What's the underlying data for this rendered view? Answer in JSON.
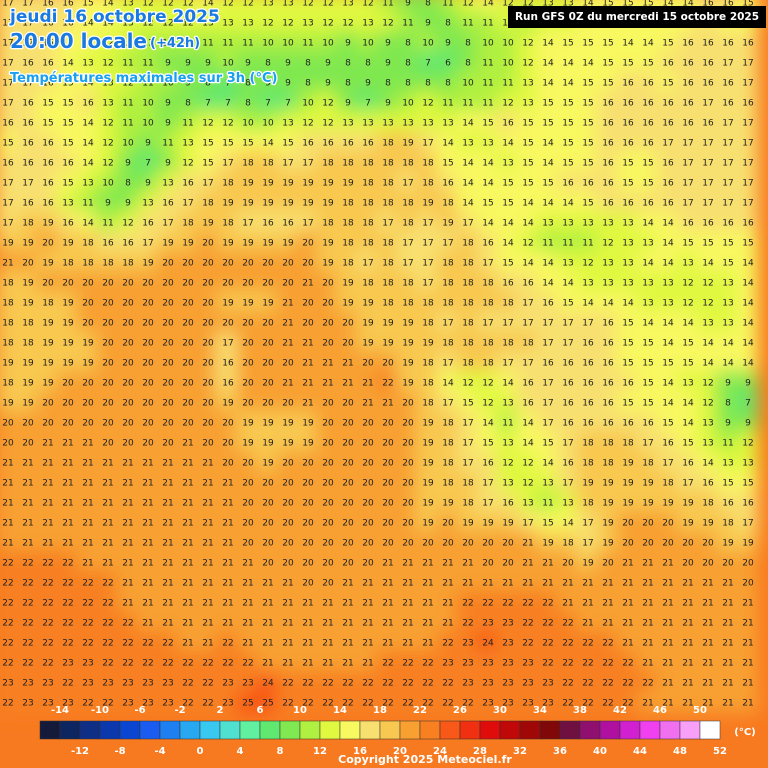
{
  "header": {
    "title": "jeudi 16 octobre 2025",
    "time": "20:00 locale",
    "lead": "(+42h)",
    "subtitle": "Températures maximales sur 3h (°C)",
    "run": "Run GFS 0Z du mercredi 15 octobre 2025"
  },
  "map": {
    "grid": [
      [
        17,
        17,
        16,
        16,
        15,
        14,
        13,
        12,
        12,
        12,
        14,
        12,
        12,
        13,
        13,
        12,
        12,
        13,
        12,
        11,
        9,
        8,
        11,
        12,
        14,
        12,
        12,
        13,
        13,
        14,
        15,
        15,
        15,
        14,
        14,
        16,
        16,
        15
      ],
      [
        17,
        17,
        16,
        16,
        14,
        14,
        13,
        12,
        12,
        12,
        13,
        13,
        13,
        12,
        12,
        13,
        12,
        12,
        13,
        12,
        11,
        9,
        8,
        11,
        11,
        12,
        11,
        12,
        13,
        14,
        15,
        15,
        15,
        14,
        14,
        16,
        15,
        15
      ],
      [
        17,
        17,
        16,
        15,
        14,
        12,
        12,
        11,
        10,
        10,
        11,
        11,
        11,
        10,
        10,
        11,
        10,
        9,
        10,
        9,
        8,
        10,
        9,
        8,
        10,
        10,
        12,
        14,
        15,
        15,
        15,
        14,
        14,
        15,
        16,
        16,
        16,
        16
      ],
      [
        17,
        16,
        16,
        14,
        13,
        12,
        11,
        11,
        9,
        9,
        9,
        10,
        9,
        8,
        9,
        8,
        9,
        8,
        8,
        9,
        8,
        7,
        6,
        8,
        11,
        10,
        12,
        14,
        14,
        14,
        15,
        15,
        15,
        16,
        16,
        16,
        17,
        17
      ],
      [
        17,
        17,
        16,
        15,
        14,
        13,
        12,
        11,
        10,
        9,
        8,
        7,
        8,
        9,
        9,
        8,
        9,
        8,
        9,
        8,
        8,
        8,
        8,
        10,
        11,
        11,
        13,
        14,
        14,
        15,
        15,
        16,
        16,
        15,
        16,
        16,
        16,
        17
      ],
      [
        17,
        16,
        15,
        15,
        16,
        13,
        11,
        10,
        9,
        8,
        7,
        7,
        8,
        7,
        7,
        10,
        12,
        9,
        7,
        9,
        10,
        12,
        11,
        11,
        11,
        12,
        13,
        15,
        15,
        15,
        16,
        16,
        16,
        16,
        16,
        17,
        16,
        16
      ],
      [
        16,
        16,
        15,
        15,
        14,
        12,
        11,
        10,
        9,
        11,
        12,
        12,
        10,
        10,
        13,
        12,
        12,
        13,
        13,
        13,
        13,
        13,
        13,
        14,
        15,
        16,
        15,
        15,
        15,
        15,
        16,
        16,
        16,
        16,
        16,
        16,
        17,
        17
      ],
      [
        15,
        16,
        16,
        15,
        14,
        12,
        10,
        9,
        11,
        13,
        15,
        15,
        15,
        14,
        15,
        16,
        16,
        16,
        16,
        18,
        19,
        17,
        14,
        13,
        13,
        14,
        15,
        14,
        15,
        15,
        16,
        16,
        16,
        17,
        17,
        17,
        17,
        17
      ],
      [
        16,
        16,
        16,
        16,
        14,
        12,
        9,
        7,
        9,
        12,
        15,
        17,
        18,
        18,
        17,
        17,
        18,
        18,
        18,
        18,
        18,
        18,
        15,
        14,
        14,
        13,
        15,
        14,
        15,
        15,
        16,
        15,
        15,
        16,
        17,
        17,
        17,
        17
      ],
      [
        17,
        17,
        16,
        15,
        13,
        10,
        8,
        9,
        13,
        16,
        17,
        18,
        19,
        19,
        19,
        19,
        19,
        19,
        18,
        18,
        17,
        18,
        16,
        14,
        14,
        15,
        15,
        15,
        16,
        16,
        16,
        15,
        15,
        16,
        17,
        17,
        17,
        17
      ],
      [
        17,
        16,
        16,
        13,
        11,
        9,
        9,
        13,
        16,
        17,
        18,
        19,
        19,
        19,
        19,
        19,
        19,
        18,
        18,
        18,
        18,
        19,
        18,
        14,
        15,
        15,
        14,
        14,
        14,
        15,
        16,
        16,
        16,
        16,
        17,
        17,
        17,
        17
      ],
      [
        17,
        18,
        19,
        16,
        14,
        11,
        12,
        16,
        17,
        18,
        19,
        18,
        17,
        16,
        16,
        17,
        18,
        18,
        18,
        17,
        18,
        17,
        19,
        17,
        14,
        14,
        14,
        13,
        13,
        13,
        13,
        13,
        14,
        14,
        16,
        16,
        16,
        16
      ],
      [
        19,
        19,
        20,
        19,
        18,
        16,
        16,
        17,
        19,
        19,
        20,
        19,
        19,
        19,
        19,
        20,
        19,
        18,
        18,
        18,
        17,
        17,
        17,
        18,
        16,
        14,
        12,
        11,
        11,
        11,
        12,
        13,
        13,
        14,
        15,
        15,
        15,
        15
      ],
      [
        21,
        20,
        19,
        18,
        18,
        18,
        18,
        19,
        20,
        20,
        20,
        20,
        20,
        20,
        20,
        20,
        19,
        18,
        17,
        18,
        17,
        17,
        18,
        18,
        17,
        15,
        14,
        14,
        13,
        12,
        13,
        13,
        14,
        14,
        13,
        14,
        15,
        14
      ],
      [
        18,
        19,
        20,
        20,
        20,
        20,
        20,
        20,
        20,
        20,
        20,
        20,
        20,
        20,
        20,
        21,
        20,
        19,
        18,
        18,
        18,
        17,
        18,
        18,
        18,
        16,
        16,
        14,
        14,
        13,
        13,
        13,
        13,
        13,
        12,
        12,
        13,
        14
      ],
      [
        18,
        19,
        18,
        19,
        20,
        20,
        20,
        20,
        20,
        20,
        20,
        19,
        19,
        19,
        21,
        20,
        20,
        19,
        19,
        18,
        18,
        18,
        18,
        18,
        18,
        18,
        17,
        16,
        15,
        14,
        14,
        14,
        13,
        13,
        12,
        12,
        13,
        14
      ],
      [
        18,
        18,
        19,
        19,
        20,
        20,
        20,
        20,
        20,
        20,
        20,
        20,
        20,
        20,
        21,
        20,
        20,
        20,
        19,
        19,
        19,
        18,
        17,
        18,
        17,
        17,
        17,
        17,
        17,
        17,
        16,
        15,
        14,
        14,
        14,
        13,
        13,
        14
      ],
      [
        18,
        18,
        19,
        19,
        19,
        20,
        20,
        20,
        20,
        20,
        20,
        17,
        20,
        20,
        21,
        21,
        20,
        20,
        19,
        19,
        19,
        19,
        18,
        18,
        18,
        18,
        18,
        17,
        17,
        16,
        16,
        15,
        15,
        14,
        15,
        14,
        14,
        14
      ],
      [
        19,
        19,
        19,
        19,
        19,
        20,
        20,
        20,
        20,
        20,
        20,
        16,
        20,
        20,
        20,
        21,
        21,
        21,
        20,
        20,
        19,
        18,
        17,
        18,
        18,
        17,
        17,
        16,
        16,
        16,
        16,
        15,
        15,
        15,
        15,
        14,
        14,
        14
      ],
      [
        18,
        19,
        19,
        20,
        20,
        20,
        20,
        20,
        20,
        20,
        20,
        16,
        20,
        20,
        21,
        21,
        21,
        21,
        21,
        22,
        19,
        18,
        14,
        12,
        12,
        14,
        16,
        17,
        16,
        16,
        16,
        16,
        15,
        14,
        13,
        12,
        9,
        9
      ],
      [
        19,
        19,
        20,
        20,
        20,
        20,
        20,
        20,
        20,
        20,
        20,
        19,
        20,
        20,
        20,
        21,
        20,
        20,
        21,
        21,
        20,
        18,
        17,
        15,
        12,
        13,
        16,
        17,
        16,
        16,
        16,
        15,
        15,
        14,
        14,
        12,
        8,
        7
      ],
      [
        20,
        20,
        20,
        20,
        20,
        20,
        20,
        20,
        20,
        20,
        20,
        20,
        19,
        19,
        19,
        19,
        20,
        20,
        20,
        20,
        20,
        19,
        18,
        17,
        14,
        11,
        14,
        17,
        16,
        16,
        16,
        16,
        16,
        15,
        14,
        13,
        9,
        9
      ],
      [
        20,
        20,
        21,
        21,
        21,
        20,
        20,
        20,
        20,
        21,
        20,
        20,
        19,
        19,
        19,
        19,
        20,
        20,
        20,
        20,
        20,
        19,
        18,
        17,
        15,
        13,
        14,
        15,
        17,
        18,
        18,
        18,
        17,
        16,
        15,
        13,
        11,
        12
      ],
      [
        21,
        21,
        21,
        21,
        21,
        21,
        21,
        21,
        21,
        21,
        21,
        20,
        20,
        19,
        20,
        20,
        20,
        20,
        20,
        20,
        20,
        19,
        18,
        17,
        16,
        12,
        12,
        14,
        16,
        18,
        18,
        19,
        18,
        17,
        16,
        14,
        13,
        13
      ],
      [
        21,
        21,
        21,
        21,
        21,
        21,
        21,
        21,
        21,
        21,
        21,
        21,
        20,
        20,
        20,
        20,
        20,
        20,
        20,
        20,
        20,
        19,
        18,
        18,
        17,
        13,
        12,
        13,
        17,
        19,
        19,
        19,
        19,
        18,
        17,
        16,
        15,
        15
      ],
      [
        21,
        21,
        21,
        21,
        21,
        21,
        21,
        21,
        21,
        21,
        21,
        21,
        20,
        20,
        20,
        20,
        20,
        20,
        20,
        20,
        20,
        19,
        19,
        18,
        17,
        16,
        13,
        11,
        13,
        18,
        19,
        19,
        19,
        19,
        19,
        18,
        16,
        16
      ],
      [
        21,
        21,
        21,
        21,
        21,
        21,
        21,
        21,
        21,
        21,
        21,
        21,
        20,
        20,
        20,
        20,
        20,
        20,
        20,
        20,
        20,
        19,
        20,
        19,
        19,
        19,
        17,
        15,
        14,
        17,
        19,
        20,
        20,
        20,
        19,
        19,
        18,
        17
      ],
      [
        21,
        21,
        21,
        21,
        21,
        21,
        21,
        21,
        21,
        21,
        21,
        21,
        20,
        20,
        20,
        20,
        20,
        20,
        20,
        20,
        20,
        20,
        20,
        20,
        20,
        20,
        21,
        19,
        18,
        17,
        19,
        20,
        20,
        20,
        20,
        20,
        19,
        19
      ],
      [
        22,
        22,
        22,
        22,
        21,
        21,
        21,
        21,
        21,
        21,
        21,
        21,
        21,
        20,
        20,
        20,
        20,
        20,
        20,
        21,
        21,
        21,
        21,
        21,
        20,
        20,
        21,
        21,
        20,
        19,
        20,
        21,
        21,
        21,
        20,
        20,
        20,
        20
      ],
      [
        22,
        22,
        22,
        22,
        22,
        22,
        21,
        21,
        21,
        21,
        21,
        21,
        21,
        21,
        21,
        20,
        20,
        21,
        21,
        21,
        21,
        21,
        21,
        21,
        21,
        21,
        21,
        21,
        21,
        21,
        21,
        21,
        21,
        21,
        21,
        21,
        21,
        20
      ],
      [
        22,
        22,
        22,
        22,
        22,
        22,
        21,
        21,
        21,
        21,
        21,
        21,
        21,
        21,
        21,
        21,
        21,
        21,
        21,
        21,
        21,
        21,
        21,
        22,
        22,
        22,
        22,
        22,
        21,
        21,
        21,
        21,
        21,
        21,
        21,
        21,
        21,
        21
      ],
      [
        22,
        22,
        22,
        22,
        22,
        22,
        22,
        21,
        21,
        21,
        21,
        21,
        21,
        21,
        21,
        21,
        21,
        21,
        21,
        21,
        21,
        21,
        21,
        22,
        23,
        23,
        22,
        22,
        22,
        21,
        21,
        21,
        21,
        21,
        21,
        21,
        21,
        21
      ],
      [
        22,
        22,
        22,
        22,
        22,
        22,
        22,
        22,
        22,
        21,
        21,
        22,
        21,
        21,
        21,
        21,
        21,
        21,
        21,
        21,
        21,
        21,
        22,
        23,
        24,
        23,
        22,
        22,
        22,
        22,
        22,
        21,
        21,
        21,
        21,
        21,
        21,
        21
      ],
      [
        22,
        22,
        22,
        23,
        23,
        22,
        22,
        22,
        22,
        22,
        22,
        22,
        22,
        21,
        21,
        21,
        21,
        21,
        21,
        22,
        22,
        22,
        23,
        23,
        23,
        23,
        23,
        22,
        22,
        22,
        22,
        22,
        21,
        21,
        21,
        21,
        21,
        21
      ],
      [
        23,
        23,
        23,
        22,
        23,
        23,
        23,
        23,
        23,
        22,
        22,
        23,
        23,
        24,
        22,
        22,
        22,
        22,
        22,
        22,
        22,
        22,
        22,
        23,
        23,
        23,
        23,
        23,
        22,
        22,
        22,
        22,
        22,
        21,
        21,
        21,
        21,
        21
      ],
      [
        22,
        23,
        23,
        23,
        22,
        22,
        23,
        23,
        23,
        22,
        22,
        23,
        25,
        25,
        22,
        22,
        22,
        22,
        22,
        22,
        22,
        22,
        22,
        22,
        23,
        23,
        23,
        23,
        22,
        22,
        22,
        22,
        21,
        21,
        21,
        21,
        21,
        21
      ]
    ]
  },
  "legend": {
    "range": [
      -16,
      52
    ],
    "colors": [
      "#141a3a",
      "#0d2560",
      "#0f2f86",
      "#0c38ad",
      "#0a46d2",
      "#1a5cf0",
      "#1e80f0",
      "#28a8f0",
      "#38c8f0",
      "#50e0d0",
      "#60f0a0",
      "#60e870",
      "#80e850",
      "#b0f040",
      "#e0f840",
      "#f8f860",
      "#f8e070",
      "#f8c850",
      "#f8a030",
      "#f88020",
      "#f85818",
      "#f03010",
      "#e00c0c",
      "#c00808",
      "#a00808",
      "#800808",
      "#701040",
      "#901070",
      "#b010a0",
      "#d020d0",
      "#f040f0",
      "#f070f0",
      "#f8a0f8",
      "#ffffff"
    ],
    "ticks_top": [
      -14,
      -10,
      -6,
      -2,
      2,
      6,
      10,
      14,
      18,
      22,
      26,
      30,
      34,
      38,
      42,
      46,
      50
    ],
    "ticks_bottom": [
      -12,
      -8,
      -4,
      0,
      4,
      8,
      12,
      16,
      20,
      24,
      28,
      32,
      36,
      40,
      44,
      48,
      52
    ],
    "unit": "(°C)"
  },
  "footer": {
    "copyright": "Copyright 2025 Meteociel.fr"
  }
}
